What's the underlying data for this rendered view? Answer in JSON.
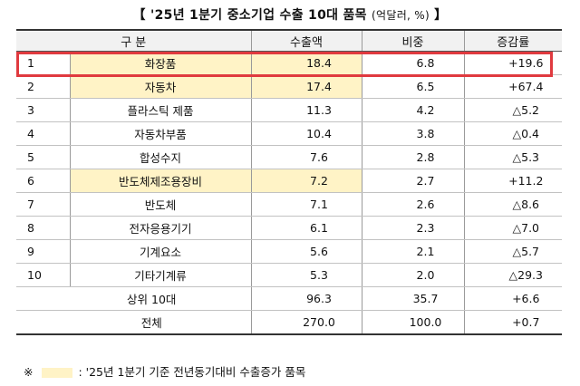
{
  "title": {
    "main": "【 '25년 1분기 중소기업 수출 10대 품목",
    "unit": "(억달러, %)",
    "close": "】"
  },
  "table": {
    "headers": [
      "구   분",
      "수출액",
      "비중",
      "증감률"
    ],
    "rows": [
      {
        "rank": "1",
        "item": "화장품",
        "export": "18.4",
        "share": "6.8",
        "change": "+19.6",
        "highlight": true
      },
      {
        "rank": "2",
        "item": "자동차",
        "export": "17.4",
        "share": "6.5",
        "change": "+67.4",
        "highlight": true
      },
      {
        "rank": "3",
        "item": "플라스틱 제품",
        "export": "11.3",
        "share": "4.2",
        "change": "△5.2",
        "highlight": false
      },
      {
        "rank": "4",
        "item": "자동차부품",
        "export": "10.4",
        "share": "3.8",
        "change": "△0.4",
        "highlight": false
      },
      {
        "rank": "5",
        "item": "합성수지",
        "export": "7.6",
        "share": "2.8",
        "change": "△5.3",
        "highlight": false
      },
      {
        "rank": "6",
        "item": "반도체제조용장비",
        "export": "7.2",
        "share": "2.7",
        "change": "+11.2",
        "highlight": true
      },
      {
        "rank": "7",
        "item": "반도체",
        "export": "7.1",
        "share": "2.6",
        "change": "△8.6",
        "highlight": false
      },
      {
        "rank": "8",
        "item": "전자응용기기",
        "export": "6.1",
        "share": "2.3",
        "change": "△7.0",
        "highlight": false
      },
      {
        "rank": "9",
        "item": "기계요소",
        "export": "5.6",
        "share": "2.1",
        "change": "△5.7",
        "highlight": false
      },
      {
        "rank": "10",
        "item": "기타기계류",
        "export": "5.3",
        "share": "2.0",
        "change": "△29.3",
        "highlight": false
      }
    ],
    "summary": [
      {
        "label": "상위 10대",
        "export": "96.3",
        "share": "35.7",
        "change": "+6.6"
      },
      {
        "label": "전체",
        "export": "270.0",
        "share": "100.0",
        "change": "+0.7"
      }
    ]
  },
  "note": {
    "mark": "※",
    "text": ": '25년 1분기 기준 전년동기대비 수출증가 품목"
  },
  "colors": {
    "highlight": "#fff3c6",
    "box": "#e03a3f"
  }
}
